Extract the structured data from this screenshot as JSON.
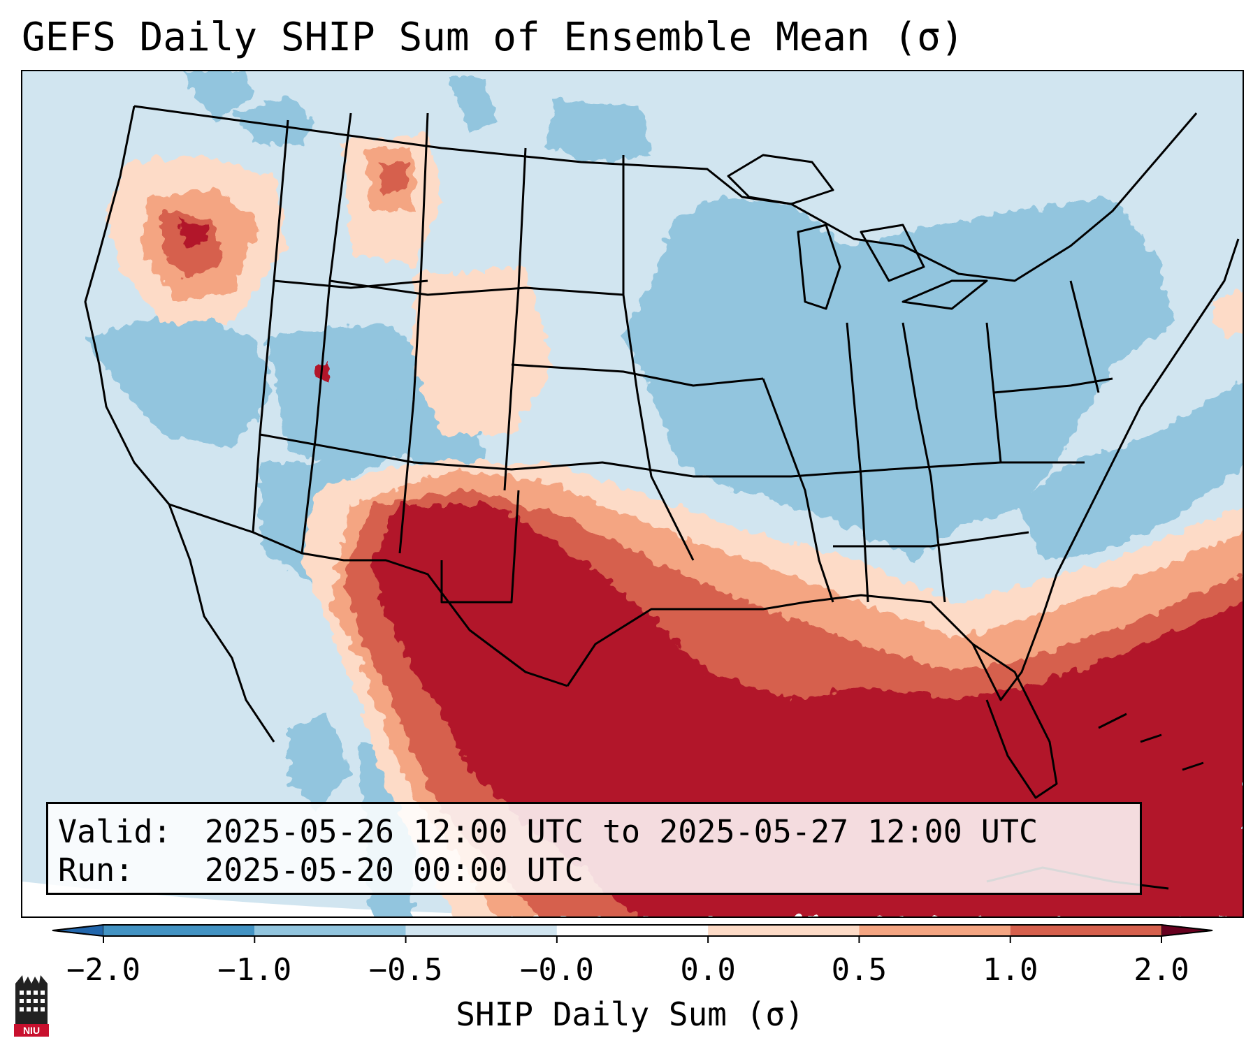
{
  "title": "GEFS Daily SHIP Sum of Ensemble Mean (σ)",
  "info": {
    "valid_label": "Valid:",
    "valid_value": "2025-05-26 12:00 UTC to 2025-05-27 12:00 UTC",
    "run_label": "Run:",
    "run_value": "2025-05-20 00:00 UTC"
  },
  "colorbar": {
    "title": "SHIP Daily Sum (σ)",
    "tick_labels": [
      "−2.0",
      "−1.0",
      "−0.5",
      "−0.0",
      "0.0",
      "0.5",
      "1.0",
      "2.0"
    ],
    "bin_colors": [
      "#4393c3",
      "#92c5de",
      "#d1e5f0",
      "#ffffff",
      "#fddbc7",
      "#f4a582",
      "#d6604d",
      "#b2182b"
    ],
    "under_color": "#2166ac",
    "over_color": "#67001f",
    "extend": "both"
  },
  "map": {
    "region": "Contiguous United States",
    "projection": "Lambert Conformal",
    "outlines": "state and country borders, coastlines"
  },
  "logo": {
    "text": "NIU",
    "icon": "university-tower-icon"
  }
}
